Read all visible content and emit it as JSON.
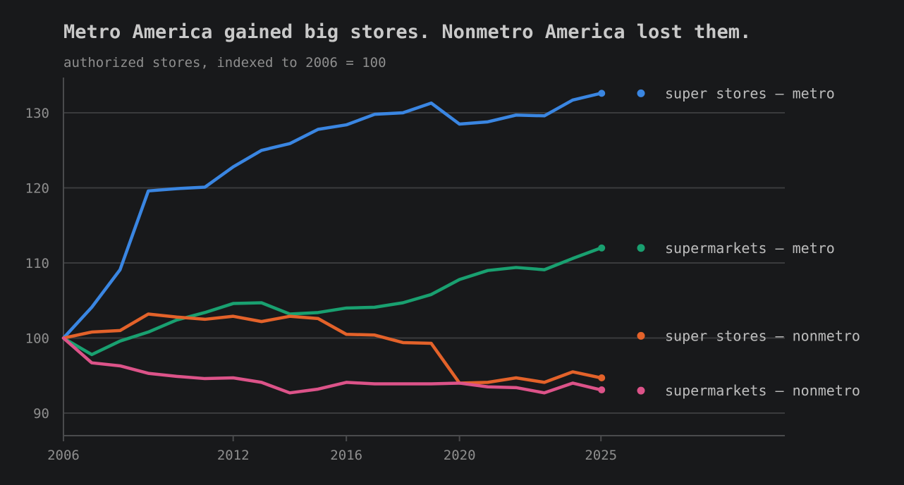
{
  "chart_data": {
    "type": "line",
    "title": "Metro America gained big stores. Nonmetro America lost them.",
    "subtitle": "authorized stores, indexed to 2006 = 100",
    "xlabel": "",
    "ylabel": "",
    "xlim": [
      2006,
      2031.5
    ],
    "ylim": [
      87,
      134.7
    ],
    "x_ticks": [
      2006,
      2012,
      2016,
      2020,
      2025
    ],
    "y_ticks": [
      90,
      100,
      110,
      120,
      130
    ],
    "grid": "horizontal",
    "legend": "right, direct labels",
    "x": [
      2006,
      2007,
      2008,
      2009,
      2010,
      2011,
      2012,
      2013,
      2014,
      2015,
      2016,
      2017,
      2018,
      2019,
      2020,
      2021,
      2022,
      2023,
      2024,
      2025
    ],
    "series": [
      {
        "name": "super stores — metro",
        "color": "#3a86e2",
        "values": [
          100,
          104.1,
          109.1,
          119.6,
          119.9,
          120.1,
          122.8,
          125.0,
          125.9,
          127.8,
          128.4,
          129.8,
          130.0,
          131.3,
          128.5,
          128.8,
          129.7,
          129.6,
          131.7,
          132.6
        ]
      },
      {
        "name": "supermarkets — metro",
        "color": "#19a070",
        "values": [
          100,
          97.8,
          99.6,
          100.8,
          102.4,
          103.4,
          104.6,
          104.7,
          103.2,
          103.4,
          104.0,
          104.1,
          104.7,
          105.8,
          107.8,
          109.0,
          109.4,
          109.1,
          110.6,
          112.0
        ]
      },
      {
        "name": "super stores — nonmetro",
        "color": "#e3622a",
        "values": [
          100,
          100.8,
          101.0,
          103.2,
          102.8,
          102.5,
          102.9,
          102.2,
          102.9,
          102.6,
          100.5,
          100.4,
          99.4,
          99.3,
          94.0,
          94.1,
          94.7,
          94.1,
          95.5,
          94.7
        ]
      },
      {
        "name": "supermarkets — nonmetro",
        "color": "#dc5389",
        "values": [
          100,
          96.7,
          96.3,
          95.3,
          94.9,
          94.6,
          94.7,
          94.1,
          92.7,
          93.2,
          94.1,
          93.9,
          93.9,
          93.9,
          94.0,
          93.5,
          93.4,
          92.7,
          94.0,
          93.1
        ]
      }
    ]
  }
}
